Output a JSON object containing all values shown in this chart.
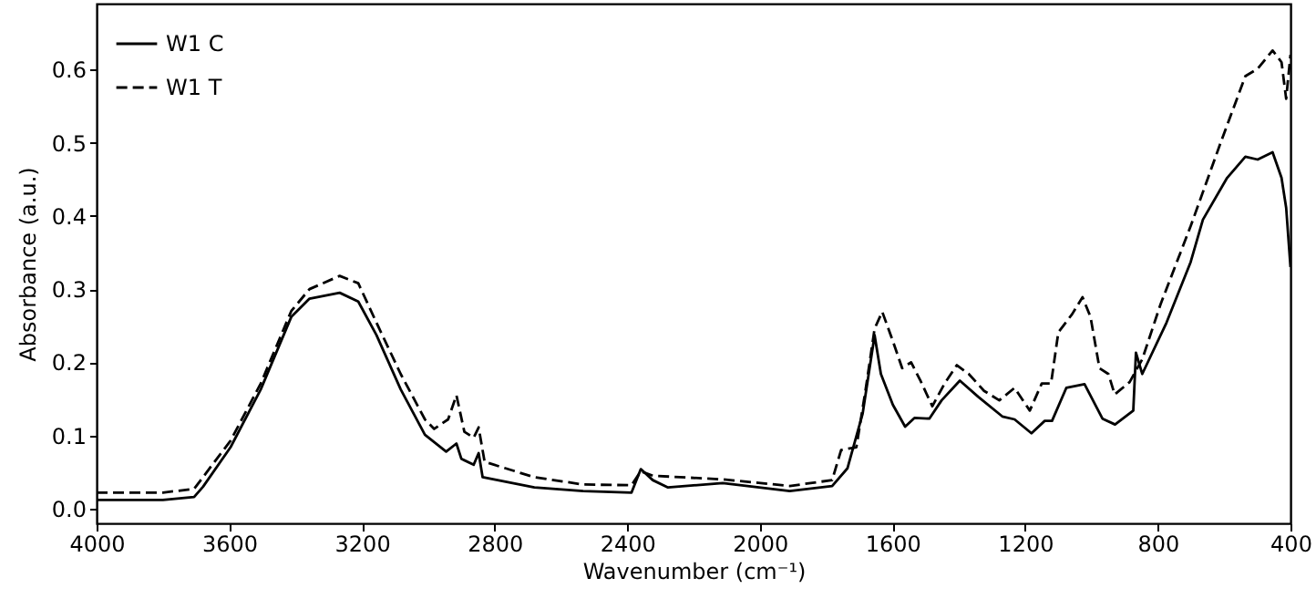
{
  "chart_data": {
    "type": "line",
    "xlabel": "Wavenumber (cm⁻¹)",
    "ylabel": "Absorbance (a.u.)",
    "xlim": [
      4000,
      400
    ],
    "ylim": [
      -0.02,
      0.69
    ],
    "xticks": [
      4000,
      3600,
      3200,
      2800,
      2400,
      2000,
      1600,
      1200,
      800,
      400
    ],
    "yticks": [
      {
        "value": 0,
        "label": "0.0"
      },
      0.1,
      0.2,
      0.3,
      0.4,
      0.5,
      0.6
    ],
    "legend": "top left",
    "grid": false,
    "series": [
      {
        "name": "W1 C",
        "color": "#000000",
        "line_style": "solid",
        "x": [
          4000,
          3800,
          3706,
          3679,
          3596,
          3505,
          3413,
          3358,
          3267,
          3211,
          3156,
          3083,
          3010,
          2946,
          2915,
          2900,
          2863,
          2848,
          2836,
          2680,
          2533,
          2387,
          2359,
          2323,
          2277,
          2112,
          1910,
          1782,
          1736,
          1690,
          1654,
          1635,
          1599,
          1562,
          1534,
          1489,
          1452,
          1397,
          1342,
          1269,
          1232,
          1181,
          1141,
          1119,
          1076,
          1021,
          967,
          929,
          874,
          866,
          847,
          774,
          701,
          664,
          591,
          536,
          499,
          454,
          427,
          413,
          400
        ],
        "values": [
          0.012,
          0.012,
          0.016,
          0.03,
          0.084,
          0.163,
          0.262,
          0.287,
          0.295,
          0.283,
          0.237,
          0.163,
          0.101,
          0.078,
          0.089,
          0.068,
          0.06,
          0.076,
          0.043,
          0.029,
          0.024,
          0.022,
          0.054,
          0.039,
          0.029,
          0.035,
          0.024,
          0.031,
          0.055,
          0.13,
          0.237,
          0.184,
          0.142,
          0.112,
          0.124,
          0.123,
          0.148,
          0.175,
          0.153,
          0.126,
          0.122,
          0.103,
          0.12,
          0.12,
          0.165,
          0.17,
          0.123,
          0.115,
          0.134,
          0.213,
          0.184,
          0.254,
          0.337,
          0.395,
          0.452,
          0.481,
          0.477,
          0.487,
          0.452,
          0.411,
          0.33
        ]
      },
      {
        "name": "W1 T",
        "color": "#000000",
        "line_style": "dashed",
        "x": [
          4000,
          3800,
          3706,
          3596,
          3505,
          3413,
          3358,
          3267,
          3211,
          3156,
          3083,
          3010,
          2982,
          2940,
          2915,
          2891,
          2863,
          2848,
          2830,
          2680,
          2533,
          2387,
          2359,
          2323,
          2112,
          1910,
          1782,
          1755,
          1709,
          1681,
          1654,
          1631,
          1599,
          1571,
          1544,
          1516,
          1480,
          1443,
          1406,
          1370,
          1324,
          1278,
          1232,
          1186,
          1150,
          1122,
          1100,
          1058,
          1027,
          1003,
          976,
          949,
          930,
          885,
          847,
          792,
          701,
          609,
          536,
          499,
          454,
          427,
          413,
          400
        ],
        "values": [
          0.022,
          0.022,
          0.027,
          0.093,
          0.171,
          0.27,
          0.3,
          0.318,
          0.308,
          0.254,
          0.184,
          0.122,
          0.109,
          0.122,
          0.155,
          0.105,
          0.097,
          0.111,
          0.064,
          0.043,
          0.033,
          0.032,
          0.051,
          0.045,
          0.04,
          0.031,
          0.039,
          0.08,
          0.084,
          0.163,
          0.246,
          0.269,
          0.229,
          0.192,
          0.2,
          0.175,
          0.14,
          0.171,
          0.196,
          0.184,
          0.161,
          0.148,
          0.165,
          0.134,
          0.171,
          0.171,
          0.241,
          0.266,
          0.289,
          0.262,
          0.192,
          0.184,
          0.156,
          0.173,
          0.204,
          0.279,
          0.386,
          0.502,
          0.591,
          0.601,
          0.626,
          0.61,
          0.56,
          0.62
        ]
      }
    ]
  }
}
